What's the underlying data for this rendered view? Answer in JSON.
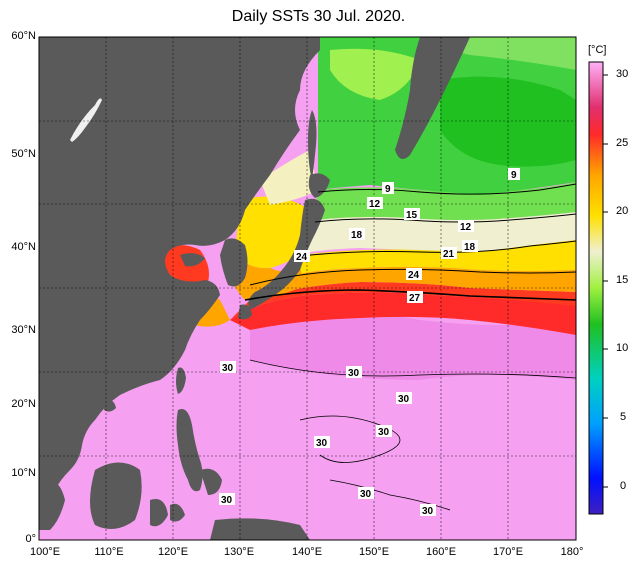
{
  "title": "Daily SSTs 30 Jul. 2020.",
  "latitude_labels": [
    "60°N",
    "50°N",
    "40°N",
    "30°N",
    "20°N",
    "10°N",
    "0°"
  ],
  "longitude_labels": [
    "100°E",
    "110°E",
    "120°E",
    "130°E",
    "140°E",
    "150°E",
    "160°E",
    "170°E",
    "180°"
  ],
  "colorbar": {
    "unit": "[°C]",
    "ticks": [
      "30",
      "25",
      "20",
      "15",
      "10",
      "5",
      "0"
    ]
  },
  "isotherm_labels": [
    "9",
    "9",
    "12",
    "12",
    "15",
    "18",
    "18",
    "21",
    "24",
    "24",
    "27",
    "30",
    "30",
    "30",
    "30",
    "30",
    "30",
    "30",
    "30"
  ],
  "colors": {
    "land": "#5a5a5a",
    "sst_30": "#f5a0f0",
    "sst_27": "#ff2a2a",
    "sst_24": "#ffa500",
    "sst_21": "#ffe000",
    "sst_15": "#f0f0d0",
    "sst_12": "#60e040",
    "sst_9": "#20c020"
  }
}
